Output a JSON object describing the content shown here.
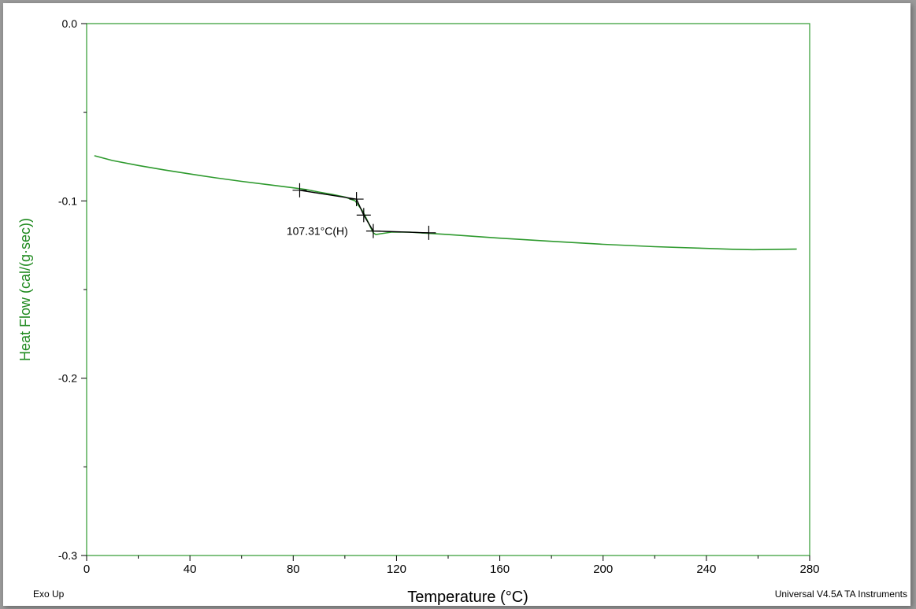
{
  "chart_data": {
    "type": "line",
    "xlabel": "Temperature (°C)",
    "ylabel": "Heat Flow (cal/(g·sec))",
    "xlim": [
      0,
      280
    ],
    "ylim": [
      -0.3,
      0.0
    ],
    "x_ticks": [
      0,
      40,
      80,
      120,
      160,
      200,
      240,
      280
    ],
    "y_ticks": [
      0.0,
      -0.1,
      -0.2,
      -0.3
    ],
    "y_tick_labels": [
      "0.0",
      "-0.1",
      "-0.2",
      "-0.3"
    ],
    "grid": false,
    "colors": {
      "series": "#2e9a2e",
      "analysis": "#000000",
      "ylabel": "#1f8a1f"
    },
    "series": [
      {
        "x": [
          3,
          10,
          20,
          30,
          40,
          50,
          60,
          70,
          80,
          85,
          90,
          95,
          100,
          104,
          107,
          109,
          111,
          112,
          114,
          118,
          125,
          130,
          140,
          160,
          180,
          200,
          220,
          240,
          250,
          258,
          265,
          275
        ],
        "y": [
          -0.0745,
          -0.0772,
          -0.08,
          -0.0825,
          -0.0848,
          -0.087,
          -0.089,
          -0.0908,
          -0.0926,
          -0.0936,
          -0.095,
          -0.0963,
          -0.0978,
          -0.1,
          -0.106,
          -0.112,
          -0.118,
          -0.119,
          -0.1185,
          -0.1176,
          -0.1176,
          -0.1181,
          -0.119,
          -0.121,
          -0.1228,
          -0.1245,
          -0.1258,
          -0.1268,
          -0.1273,
          -0.1275,
          -0.1274,
          -0.1272
        ]
      }
    ],
    "analysis": {
      "label": "107.31°C(H)",
      "glass_transition_x": 107.31,
      "glass_transition_y": -0.108,
      "onset": {
        "x": 82.5,
        "y": -0.094
      },
      "onset_end": {
        "x": 104.5,
        "y": -0.099
      },
      "endset_start": {
        "x": 111,
        "y": -0.117
      },
      "endset": {
        "x": 132.5,
        "y": -0.118
      }
    },
    "footer_left": "Exo Up",
    "footer_right": "Universal V4.5A TA Instruments"
  }
}
